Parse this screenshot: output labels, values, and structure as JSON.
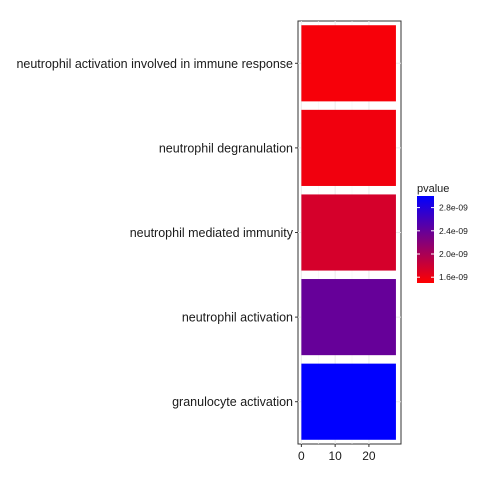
{
  "chart_data": {
    "type": "bar",
    "orientation": "horizontal",
    "categories": [
      "neutrophil activation involved in immune response",
      "neutrophil degranulation",
      "neutrophil mediated immunity",
      "neutrophil activation",
      "granulocyte activation"
    ],
    "values": [
      28,
      28,
      28,
      28,
      28
    ],
    "pvalues": [
      1.55e-09,
      1.58e-09,
      1.75e-09,
      2.4e-09,
      3e-09
    ],
    "xlim": [
      -1,
      29.5
    ],
    "xticks": [
      {
        "value": 0,
        "label": "0"
      },
      {
        "value": 10,
        "label": "10"
      },
      {
        "value": 20,
        "label": "20"
      }
    ],
    "xlabel": "",
    "ylabel": "",
    "grid": true,
    "legend": {
      "title": "pvalue",
      "position": "right",
      "low": 1.5e-09,
      "high": 3e-09,
      "low_color": "#ff0000",
      "high_color": "#0000ff",
      "ticks": [
        {
          "value": 2.8e-09,
          "label": "2.8e-09"
        },
        {
          "value": 2.4e-09,
          "label": "2.4e-09"
        },
        {
          "value": 2e-09,
          "label": "2.0e-09"
        },
        {
          "value": 1.6e-09,
          "label": "1.6e-09"
        }
      ]
    }
  }
}
